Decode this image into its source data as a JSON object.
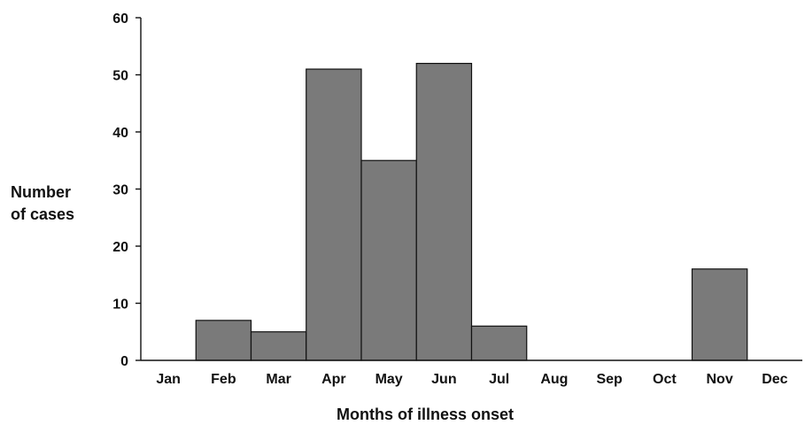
{
  "chart_data": {
    "type": "bar",
    "categories": [
      "Jan",
      "Feb",
      "Mar",
      "Apr",
      "May",
      "Jun",
      "Jul",
      "Aug",
      "Sep",
      "Oct",
      "Nov",
      "Dec"
    ],
    "values": [
      0,
      7,
      5,
      51,
      35,
      52,
      6,
      0,
      0,
      0,
      16,
      0
    ],
    "xlabel": "Months of illness onset",
    "ylabel_lines": [
      "Number",
      "of cases"
    ],
    "ylim": [
      0,
      60
    ],
    "yticks": [
      0,
      10,
      20,
      30,
      40,
      50,
      60
    ],
    "grid": false,
    "legend": "none",
    "colors": {
      "bar": "#7a7a7a",
      "axis": "#111111"
    }
  }
}
